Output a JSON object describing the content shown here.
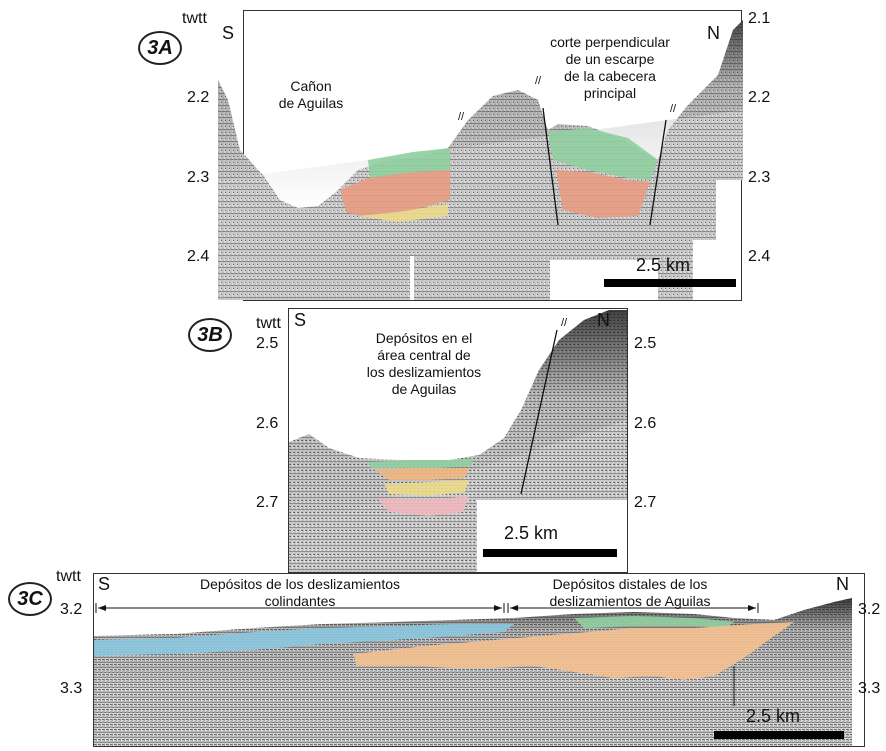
{
  "panels": {
    "a": {
      "badge": "3A",
      "axis_title": "twtt",
      "left_dir": "S",
      "right_dir": "N",
      "left_ticks": [
        "2.2",
        "2.3",
        "2.4"
      ],
      "right_ticks": [
        "2.1",
        "2.2",
        "2.3",
        "2.4"
      ],
      "note_canyon": "Cañon\nde Aguilas",
      "note_escarpment": "corte perpendicular\nde un escarpe\nde la cabecera\nprincipal",
      "scale": "2.5 km"
    },
    "b": {
      "badge": "3B",
      "axis_title": "twtt",
      "left_dir": "S",
      "right_dir": "N",
      "left_ticks": [
        "2.5",
        "2.6",
        "2.7"
      ],
      "right_ticks": [
        "2.5",
        "2.6",
        "2.7"
      ],
      "note_deposits": "Depósitos en el\nárea central de\nlos deslizamientos\nde Aguilas",
      "scale": "2.5 km"
    },
    "c": {
      "badge": "3C",
      "axis_title": "twtt",
      "left_dir": "S",
      "right_dir": "N",
      "left_ticks": [
        "3.2",
        "3.3"
      ],
      "right_ticks": [
        "3.2",
        "3.3"
      ],
      "note_left": "Depósitos de los deslizamientos\ncolindantes",
      "note_right": "Depósitos distales de los\ndeslizamientos de Aguilas",
      "scale": "2.5 km"
    }
  },
  "colors": {
    "green": "#8fcf9e",
    "red": "#e79b82",
    "yellow": "#ecd98a",
    "pink": "#eeb7bd",
    "blue": "#8cc8df",
    "orange": "#f4c190"
  }
}
